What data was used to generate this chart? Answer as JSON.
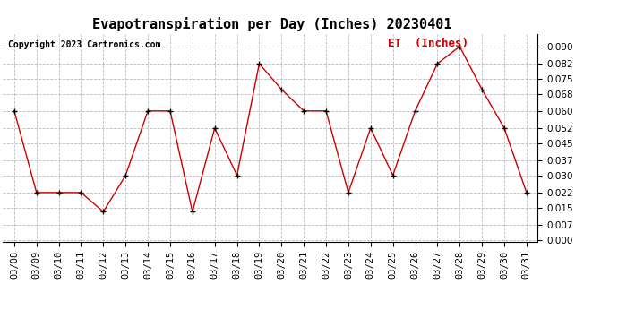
{
  "title": "Evapotranspiration per Day (Inches) 20230401",
  "copyright": "Copyright 2023 Cartronics.com",
  "legend_label": "ET  (Inches)",
  "dates": [
    "03/08",
    "03/09",
    "03/10",
    "03/11",
    "03/12",
    "03/13",
    "03/14",
    "03/15",
    "03/16",
    "03/17",
    "03/18",
    "03/19",
    "03/20",
    "03/21",
    "03/22",
    "03/23",
    "03/24",
    "03/25",
    "03/26",
    "03/27",
    "03/28",
    "03/29",
    "03/30",
    "03/31"
  ],
  "values": [
    0.06,
    0.022,
    0.022,
    0.022,
    0.013,
    0.03,
    0.06,
    0.06,
    0.013,
    0.052,
    0.03,
    0.082,
    0.07,
    0.06,
    0.06,
    0.022,
    0.052,
    0.03,
    0.06,
    0.082,
    0.09,
    0.07,
    0.052,
    0.022
  ],
  "line_color": "#cc0000",
  "marker_color": "#000000",
  "background_color": "#ffffff",
  "grid_color": "#bbbbbb",
  "title_fontsize": 11,
  "copyright_fontsize": 7,
  "legend_fontsize": 9,
  "tick_fontsize": 7.5,
  "ylim": [
    -0.001,
    0.096
  ],
  "yticks": [
    0.0,
    0.007,
    0.015,
    0.022,
    0.03,
    0.037,
    0.045,
    0.052,
    0.06,
    0.068,
    0.075,
    0.082,
    0.09
  ]
}
